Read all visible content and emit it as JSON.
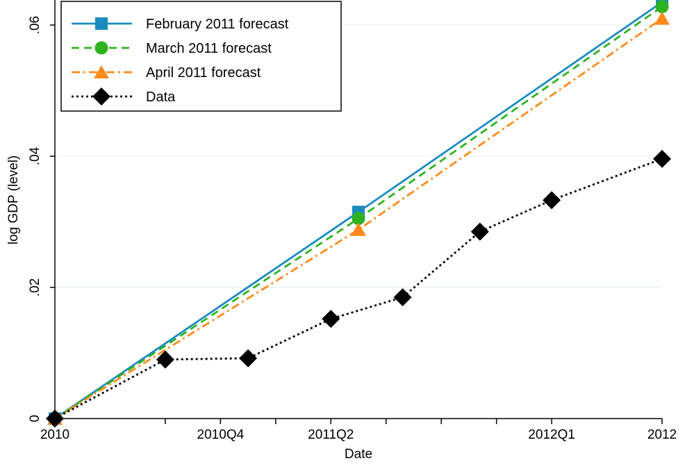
{
  "chart_data": {
    "type": "line",
    "xlabel": "Date",
    "ylabel": "log GDP (level)",
    "x_tick_positions": [
      0,
      3,
      5,
      6,
      8,
      9,
      11
    ],
    "x_tick_labels": [
      "2010",
      "2010Q4",
      "2011Q2",
      "",
      "",
      "2012Q1",
      "2012"
    ],
    "x_extra_ticks": [
      2,
      4,
      7
    ],
    "xlim": [
      0,
      11
    ],
    "ylim": [
      0,
      0.0635
    ],
    "y_ticks": [
      0,
      0.02,
      0.04,
      0.06
    ],
    "y_tick_labels": [
      "0",
      ".02",
      ".04",
      ".06"
    ],
    "grid": true,
    "legend_position": "top-left",
    "series": [
      {
        "name": "February 2011 forecast",
        "color": "#1a8bbd",
        "dash": "solid",
        "marker": "square",
        "points": [
          [
            0,
            0
          ],
          [
            5.5,
            0.0315
          ],
          [
            11,
            0.0635
          ]
        ]
      },
      {
        "name": "March 2011 forecast",
        "color": "#2db31f",
        "dash": "dashed",
        "marker": "circle",
        "points": [
          [
            0,
            0
          ],
          [
            5.5,
            0.0305
          ],
          [
            11,
            0.0628
          ]
        ]
      },
      {
        "name": "April 2011 forecast",
        "color": "#ff8a1c",
        "dash": "dashdot",
        "marker": "triangle",
        "points": [
          [
            0,
            0
          ],
          [
            5.5,
            0.0288
          ],
          [
            11,
            0.061
          ]
        ]
      },
      {
        "name": "Data",
        "color": "#000000",
        "dash": "dotted",
        "marker": "diamond",
        "points": [
          [
            0,
            0
          ],
          [
            2,
            0.009
          ],
          [
            3.5,
            0.0092
          ],
          [
            5,
            0.0152
          ],
          [
            6.3,
            0.0185
          ],
          [
            7.7,
            0.0285
          ],
          [
            9,
            0.0333
          ],
          [
            11,
            0.0396
          ]
        ]
      }
    ]
  }
}
